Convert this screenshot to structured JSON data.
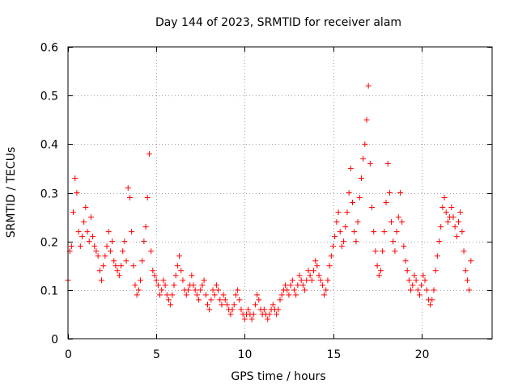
{
  "chart_data": {
    "type": "scatter",
    "title": "Day 144 of 2023, SRMTID for receiver alam",
    "xlabel": "GPS time / hours",
    "ylabel": "SRMTID / TECUs",
    "xlim": [
      0,
      24
    ],
    "ylim": [
      0,
      0.6
    ],
    "xticks": [
      0,
      5,
      10,
      15,
      20
    ],
    "xtick_labels": [
      "0",
      "5",
      "10",
      "15",
      "20"
    ],
    "yticks": [
      0,
      0.1,
      0.2,
      0.3,
      0.4,
      0.5,
      0.6
    ],
    "ytick_labels": [
      "0",
      "0.1",
      "0.2",
      "0.3",
      "0.4",
      "0.5",
      "0.6"
    ],
    "grid": true,
    "marker": "+",
    "series": [
      {
        "name": "SRMTID",
        "color": "#ff0000",
        "x": [
          0.0,
          0.1,
          0.2,
          0.3,
          0.4,
          0.5,
          0.6,
          0.7,
          0.8,
          0.9,
          1.0,
          1.1,
          1.2,
          1.3,
          1.4,
          1.5,
          1.6,
          1.7,
          1.8,
          1.9,
          2.0,
          2.1,
          2.2,
          2.3,
          2.4,
          2.5,
          2.6,
          2.7,
          2.8,
          2.9,
          3.0,
          3.1,
          3.2,
          3.3,
          3.4,
          3.5,
          3.6,
          3.7,
          3.8,
          3.9,
          4.0,
          4.1,
          4.2,
          4.3,
          4.4,
          4.5,
          4.6,
          4.7,
          4.8,
          4.9,
          5.0,
          5.1,
          5.2,
          5.3,
          5.4,
          5.5,
          5.6,
          5.7,
          5.8,
          5.9,
          6.0,
          6.1,
          6.2,
          6.3,
          6.4,
          6.5,
          6.6,
          6.7,
          6.8,
          6.9,
          7.0,
          7.1,
          7.2,
          7.3,
          7.4,
          7.5,
          7.6,
          7.7,
          7.8,
          7.9,
          8.0,
          8.1,
          8.2,
          8.3,
          8.4,
          8.5,
          8.6,
          8.7,
          8.8,
          8.9,
          9.0,
          9.1,
          9.2,
          9.3,
          9.4,
          9.5,
          9.6,
          9.7,
          9.8,
          9.9,
          10.0,
          10.1,
          10.2,
          10.3,
          10.4,
          10.5,
          10.6,
          10.7,
          10.8,
          10.9,
          11.0,
          11.1,
          11.2,
          11.3,
          11.4,
          11.5,
          11.6,
          11.7,
          11.8,
          11.9,
          12.0,
          12.1,
          12.2,
          12.3,
          12.4,
          12.5,
          12.6,
          12.7,
          12.8,
          12.9,
          13.0,
          13.1,
          13.2,
          13.3,
          13.4,
          13.5,
          13.6,
          13.7,
          13.8,
          13.9,
          14.0,
          14.1,
          14.2,
          14.3,
          14.4,
          14.5,
          14.6,
          14.7,
          14.8,
          14.9,
          15.0,
          15.1,
          15.2,
          15.3,
          15.4,
          15.5,
          15.6,
          15.7,
          15.8,
          15.9,
          16.0,
          16.1,
          16.2,
          16.3,
          16.4,
          16.5,
          16.6,
          16.7,
          16.8,
          16.9,
          17.0,
          17.1,
          17.2,
          17.3,
          17.4,
          17.5,
          17.6,
          17.7,
          17.8,
          17.9,
          18.0,
          18.1,
          18.2,
          18.3,
          18.4,
          18.5,
          18.6,
          18.7,
          18.8,
          18.9,
          19.0,
          19.1,
          19.2,
          19.3,
          19.4,
          19.5,
          19.6,
          19.7,
          19.8,
          19.9,
          20.0,
          20.1,
          20.2,
          20.3,
          20.4,
          20.5,
          20.6,
          20.7,
          20.8,
          20.9,
          21.0,
          21.1,
          21.2,
          21.3,
          21.4,
          21.5,
          21.6,
          21.7,
          21.8,
          21.9,
          22.0,
          22.1,
          22.2,
          22.3,
          22.4,
          22.5,
          22.6,
          22.7,
          22.8
        ],
        "y": [
          0.12,
          0.18,
          0.19,
          0.26,
          0.33,
          0.3,
          0.22,
          0.19,
          0.21,
          0.24,
          0.27,
          0.22,
          0.2,
          0.25,
          0.21,
          0.19,
          0.18,
          0.17,
          0.14,
          0.12,
          0.15,
          0.17,
          0.19,
          0.22,
          0.18,
          0.2,
          0.16,
          0.15,
          0.14,
          0.13,
          0.15,
          0.18,
          0.2,
          0.16,
          0.31,
          0.29,
          0.22,
          0.15,
          0.11,
          0.09,
          0.1,
          0.12,
          0.16,
          0.2,
          0.23,
          0.29,
          0.38,
          0.18,
          0.14,
          0.13,
          0.12,
          0.11,
          0.09,
          0.1,
          0.12,
          0.11,
          0.09,
          0.08,
          0.07,
          0.09,
          0.11,
          0.13,
          0.15,
          0.17,
          0.14,
          0.12,
          0.1,
          0.09,
          0.1,
          0.11,
          0.13,
          0.11,
          0.1,
          0.09,
          0.08,
          0.1,
          0.11,
          0.12,
          0.09,
          0.07,
          0.06,
          0.08,
          0.1,
          0.09,
          0.11,
          0.1,
          0.08,
          0.07,
          0.09,
          0.08,
          0.07,
          0.06,
          0.05,
          0.06,
          0.07,
          0.09,
          0.1,
          0.08,
          0.06,
          0.05,
          0.04,
          0.05,
          0.06,
          0.05,
          0.04,
          0.05,
          0.07,
          0.09,
          0.08,
          0.06,
          0.05,
          0.06,
          0.05,
          0.04,
          0.05,
          0.06,
          0.07,
          0.06,
          0.05,
          0.06,
          0.08,
          0.09,
          0.1,
          0.11,
          0.1,
          0.09,
          0.11,
          0.12,
          0.1,
          0.09,
          0.11,
          0.13,
          0.12,
          0.11,
          0.1,
          0.12,
          0.14,
          0.13,
          0.12,
          0.14,
          0.16,
          0.15,
          0.13,
          0.12,
          0.11,
          0.09,
          0.1,
          0.12,
          0.15,
          0.17,
          0.19,
          0.21,
          0.24,
          0.26,
          0.22,
          0.19,
          0.2,
          0.23,
          0.26,
          0.3,
          0.35,
          0.28,
          0.22,
          0.2,
          0.24,
          0.29,
          0.33,
          0.37,
          0.4,
          0.45,
          0.52,
          0.36,
          0.27,
          0.22,
          0.18,
          0.15,
          0.13,
          0.14,
          0.18,
          0.22,
          0.28,
          0.36,
          0.3,
          0.24,
          0.2,
          0.18,
          0.22,
          0.25,
          0.3,
          0.24,
          0.19,
          0.16,
          0.14,
          0.12,
          0.1,
          0.11,
          0.13,
          0.12,
          0.1,
          0.09,
          0.11,
          0.13,
          0.12,
          0.1,
          0.08,
          0.07,
          0.08,
          0.1,
          0.14,
          0.17,
          0.2,
          0.23,
          0.27,
          0.29,
          0.26,
          0.24,
          0.25,
          0.27,
          0.25,
          0.23,
          0.21,
          0.24,
          0.26,
          0.22,
          0.18,
          0.14,
          0.12,
          0.1,
          0.16
        ]
      }
    ]
  }
}
